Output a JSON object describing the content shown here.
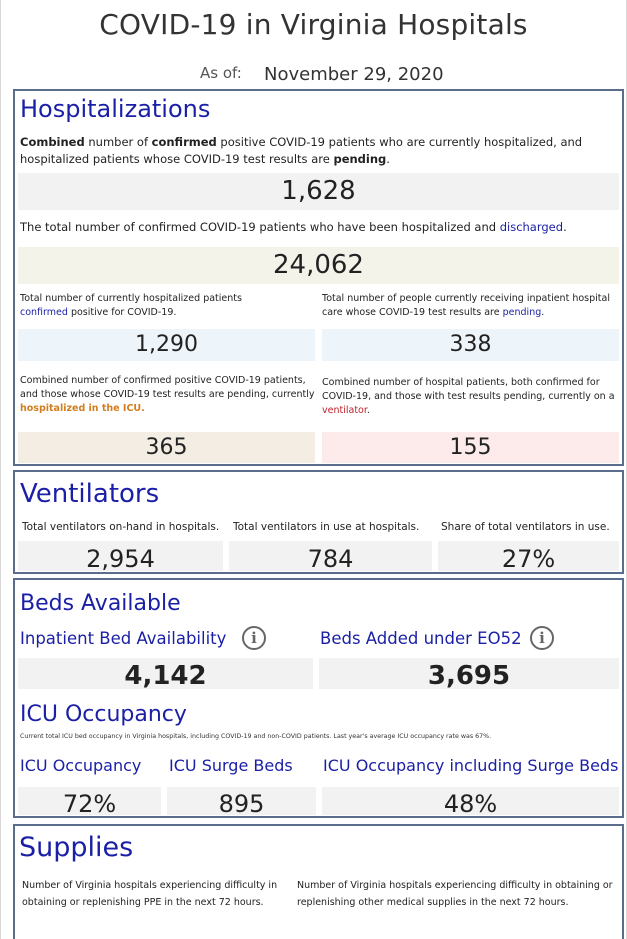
{
  "header": {
    "title": "COVID-19 in Virginia Hospitals",
    "as_of_label": "As of:",
    "as_of_date": "November 29, 2020"
  },
  "hospitalizations": {
    "heading": "Hospitalizations",
    "combined_desc": {
      "p1": "Combined",
      "p2": " number of ",
      "p3": "confirmed",
      "p4": " positive COVID-19 patients who are currently hospitalized, and hospitalized patients whose COVID-19 test results are ",
      "p5": "pending",
      "p6": "."
    },
    "combined_value": "1,628",
    "discharged_desc": {
      "p1": "The total number of confirmed COVID-19 patients who have been hospitalized and ",
      "p2": "discharged",
      "p3": "."
    },
    "discharged_value": "24,062",
    "confirmed_desc": {
      "p1": "Total number of currently hospitalized patients ",
      "p2": "confirmed",
      "p3": " positive for COVID-19."
    },
    "confirmed_value": "1,290",
    "pending_desc": {
      "p1": "Total number of people currently receiving inpatient hospital care whose COVID-19 test results are ",
      "p2": "pending",
      "p3": "."
    },
    "pending_value": "338",
    "icu_desc": {
      "p1": "Combined number of confirmed positive COVID-19 patients, and those whose COVID-19 test results are pending, currently ",
      "p2": "hospitalized in the ICU."
    },
    "icu_value": "365",
    "vent_desc": {
      "p1": "Combined number of hospital patients, both confirmed for COVID-19, and those with test results pending, currently on a ",
      "p2": "ventilator",
      "p3": "."
    },
    "vent_value": "155"
  },
  "ventilators": {
    "heading": "Ventilators",
    "labels": [
      "Total ventilators on-hand in hospitals.",
      "Total ventilators in use at hospitals.",
      "Share of total ventilators in use."
    ],
    "values": [
      "2,954",
      "784",
      "27%"
    ]
  },
  "beds": {
    "heading": "Beds Available",
    "inpatient_label": "Inpatient Bed Availability",
    "inpatient_value": "4,142",
    "added_label": "Beds Added under EO52",
    "added_value": "3,695",
    "info_glyph": "i",
    "icu_heading": "ICU Occupancy",
    "icu_note": "Current total ICU bed occupancy in Virginia hospitals, including COVID-19 and non-COVID patients. Last year's average ICU occupancy rate was 67%.",
    "icu_labels": [
      "ICU Occupancy",
      "ICU Surge Beds",
      "ICU Occupancy including Surge Beds"
    ],
    "icu_values": [
      "72%",
      "895",
      "48%"
    ]
  },
  "supplies": {
    "heading": "Supplies",
    "ppe_desc": "Number of Virginia hospitals experiencing difficulty in obtaining or replenishing PPE in the next 72 hours.",
    "other_desc": "Number of Virginia hospitals experiencing difficulty in obtaining or replenishing other medical supplies in the next 72 hours."
  },
  "colors": {
    "heading_blue": "#1a1fa6",
    "panel_border": "#5a6e8c",
    "box_gray": "#f2f2f2",
    "box_beige": "#f4f3ea",
    "box_lightblue": "#eef5fa",
    "box_tan": "#f3ede4",
    "box_pink": "#fdeaea",
    "icu_orange": "#d27e1e",
    "vent_red": "#c0202a"
  }
}
